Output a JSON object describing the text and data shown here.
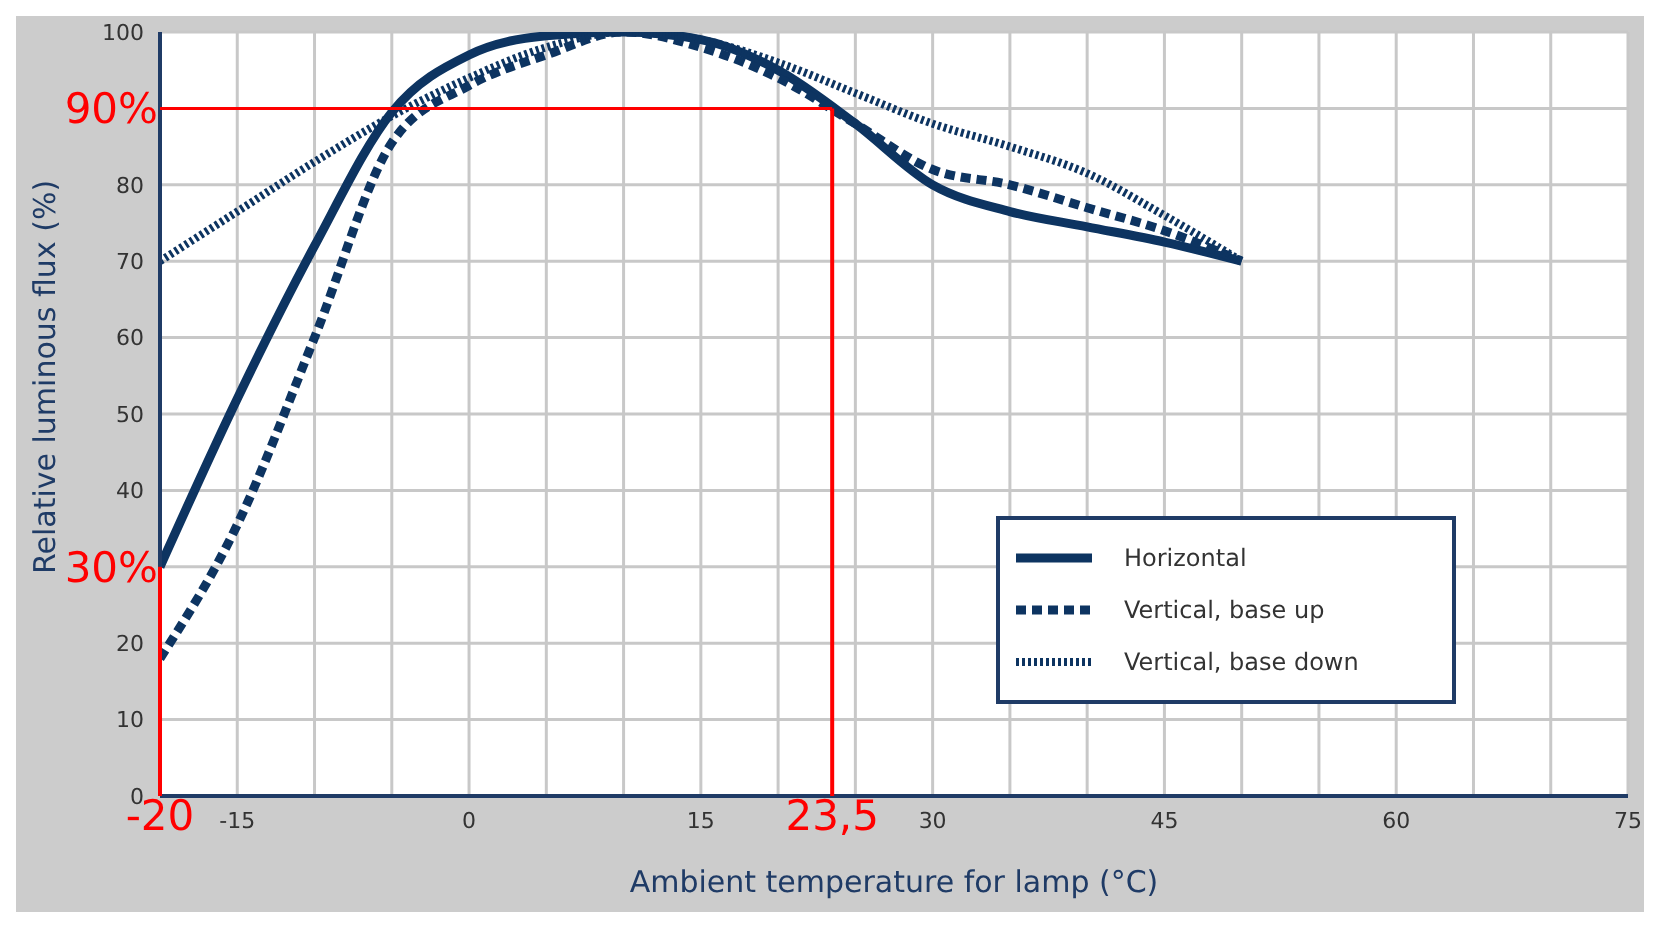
{
  "chart_data": {
    "type": "line",
    "xlabel": "Ambient temperature for lamp (°C)",
    "ylabel": "Relative luminous flux (%)",
    "x": [
      -20,
      -15,
      -10,
      -5,
      0,
      5,
      10,
      15,
      20,
      25,
      30,
      35,
      40,
      45,
      50
    ],
    "series": [
      {
        "name": "Horizontal",
        "color": "#0d3461",
        "line_style": "solid",
        "values": [
          30,
          52,
          72,
          89.5,
          97,
          99.5,
          100,
          99,
          95,
          88,
          80,
          76.5,
          74.5,
          72.5,
          70
        ]
      },
      {
        "name": "Vertical, base up",
        "color": "#0d3461",
        "line_style": "dashed",
        "values": [
          18,
          35.5,
          60,
          85.5,
          93,
          97,
          100,
          98,
          94,
          88,
          82,
          80,
          77,
          74,
          70
        ]
      },
      {
        "name": "Vertical, base down",
        "color": "#0d3461",
        "line_style": "dotted",
        "values": [
          70,
          76.5,
          83,
          89,
          94,
          98,
          100,
          99,
          96,
          92,
          88,
          85,
          81.5,
          76,
          70
        ]
      }
    ],
    "xlim": [
      -20,
      75
    ],
    "xticks": [
      {
        "value": -20,
        "label": null
      },
      -15,
      {
        "value": -10,
        "label": null
      },
      {
        "value": -5,
        "label": null
      },
      0,
      {
        "value": 5,
        "label": null
      },
      {
        "value": 10,
        "label": null
      },
      15,
      {
        "value": 20,
        "label": null
      },
      {
        "value": 25,
        "label": null
      },
      30,
      {
        "value": 35,
        "label": null
      },
      {
        "value": 40,
        "label": null
      },
      45,
      {
        "value": 50,
        "label": null
      },
      {
        "value": 55,
        "label": null
      },
      60,
      {
        "value": 65,
        "label": null
      },
      {
        "value": 70,
        "label": null
      },
      75
    ],
    "ylim": [
      0,
      100
    ],
    "yticks": [
      0,
      10,
      20,
      {
        "value": 30,
        "label": null
      },
      40,
      50,
      60,
      70,
      80,
      {
        "value": 90,
        "label": null
      },
      100
    ],
    "ref_lines": [
      {
        "axis": "y",
        "value": 90,
        "label": "90%",
        "color": "#ff0000"
      },
      {
        "axis": "x",
        "value": 23.5,
        "label": "23,5",
        "color": "#ff0000"
      },
      {
        "axis": "x",
        "value": -20,
        "label": "-20",
        "color": "#ff0000"
      }
    ],
    "annotations": [
      {
        "text": "30%",
        "x": -20,
        "y": 30
      }
    ],
    "grid": true,
    "legend": "bottom right",
    "marker": "none"
  }
}
